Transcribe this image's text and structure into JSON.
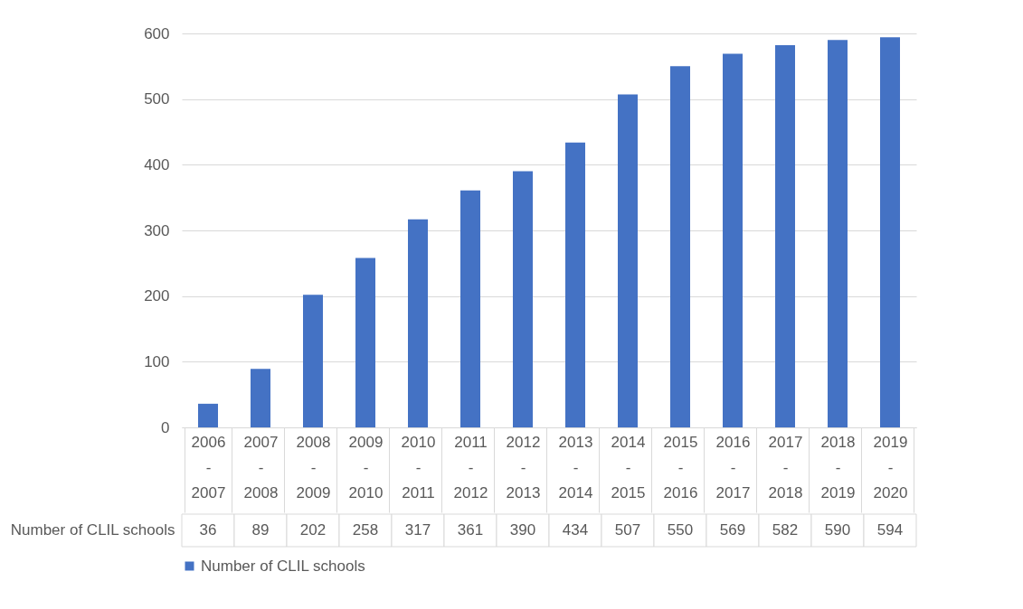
{
  "chart_data": {
    "type": "bar",
    "categories": [
      "2006 - 2007",
      "2007 - 2008",
      "2008 - 2009",
      "2009 - 2010",
      "2010 - 2011",
      "2011 - 2012",
      "2012 - 2013",
      "2013 - 2014",
      "2014 - 2015",
      "2015 - 2016",
      "2016 - 2017",
      "2017 - 2018",
      "2018 - 2019",
      "2019 - 2020"
    ],
    "series": [
      {
        "name": "Number of CLIL schools",
        "color": "#4472c4",
        "values": [
          36,
          89,
          202,
          258,
          317,
          361,
          390,
          434,
          507,
          550,
          569,
          582,
          590,
          594
        ]
      }
    ],
    "ylim": [
      0,
      600
    ],
    "yticks": [
      0,
      100,
      200,
      300,
      400,
      500,
      600
    ],
    "grid": "y",
    "legend": "bottom",
    "data_labels": true
  }
}
